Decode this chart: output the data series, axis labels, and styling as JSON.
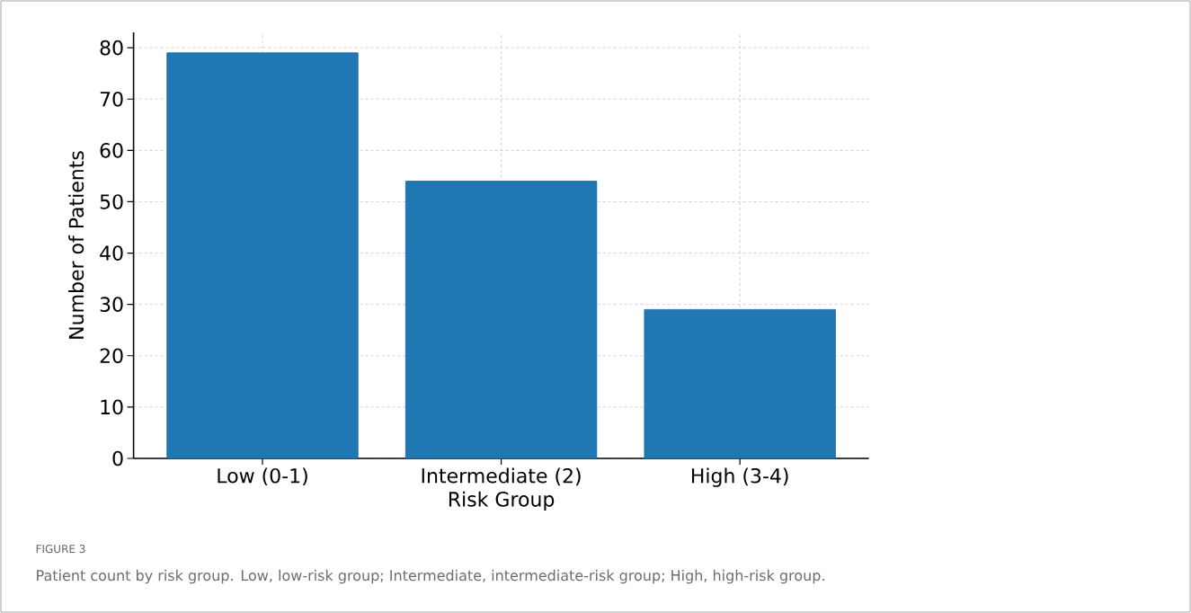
{
  "chart_data": {
    "type": "bar",
    "title": "FIGURE 3",
    "xlabel": "Risk Group",
    "ylabel": "Number of Patients",
    "categories": [
      "Low (0-1)",
      "Intermediate (2)",
      "High (3-4)"
    ],
    "values": [
      79,
      54,
      29
    ],
    "color": "#1f77b4",
    "ylim": [
      0,
      83
    ],
    "yticks": [
      0,
      10,
      20,
      30,
      40,
      50,
      60,
      70,
      80
    ],
    "grid": true,
    "annotations": [
      "Patient count by risk group. Low, low-risk group; Intermediate, intermediate-risk group; High, high-risk group."
    ]
  }
}
